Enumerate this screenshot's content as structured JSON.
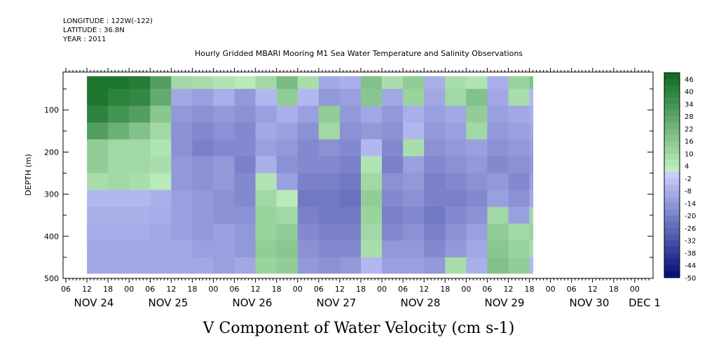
{
  "header": {
    "longitude": "LONGITUDE : 122W(-122)",
    "latitude": "LATITUDE : 36.8N",
    "year": "YEAR : 2011"
  },
  "chart_data": {
    "type": "heatmap",
    "title": "Hourly Gridded MBARI Mooring M1 Sea Water Temperature and Salinity Observations",
    "xlabel": "",
    "ylabel": "DEPTH (m)",
    "colorbar_label": "V Component of Water Velocity (cm s-1)",
    "x_hour_labels": [
      "06",
      "12",
      "18",
      "00",
      "06",
      "12",
      "18",
      "00",
      "06",
      "12",
      "18",
      "00",
      "06",
      "12",
      "18",
      "00",
      "06",
      "12",
      "18",
      "00",
      "06",
      "12",
      "18",
      "00",
      "06",
      "12",
      "18",
      "00"
    ],
    "x_date_labels": [
      "NOV 24",
      "NOV 25",
      "NOV 26",
      "NOV 27",
      "NOV 28",
      "NOV 29",
      "NOV 30",
      "DEC 1"
    ],
    "y_ticks": [
      100,
      200,
      300,
      400,
      500
    ],
    "ylim": [
      500,
      10
    ],
    "data_x_range_hours": [
      12,
      139
    ],
    "data_depth_range": [
      20,
      488
    ],
    "colorbar_ticks": [
      46,
      40,
      34,
      28,
      22,
      16,
      10,
      4,
      -2,
      -8,
      -14,
      -20,
      -26,
      -32,
      -38,
      -44,
      -50
    ],
    "colorbar_range": [
      -50,
      49
    ],
    "colors": {
      "positive": "#22c24a",
      "negative": "#3355e0",
      "neutral": "#b8c4ff"
    },
    "columns": [
      {
        "hour": 12,
        "values": [
          44,
          44,
          40,
          30,
          14,
          14,
          8,
          -6,
          -8,
          -9,
          -10,
          -10
        ]
      },
      {
        "hour": 18,
        "values": [
          44,
          40,
          34,
          24,
          10,
          10,
          10,
          -6,
          -8,
          -9,
          -10,
          -10
        ]
      },
      {
        "hour": 24,
        "values": [
          42,
          38,
          30,
          18,
          10,
          10,
          8,
          -6,
          -8,
          -9,
          -10,
          -10
        ]
      },
      {
        "hour": 30,
        "values": [
          30,
          26,
          16,
          10,
          6,
          8,
          4,
          -8,
          -9,
          -10,
          -10,
          -10
        ]
      },
      {
        "hour": 36,
        "values": [
          10,
          -10,
          -14,
          -16,
          -16,
          -14,
          -14,
          -12,
          -12,
          -12,
          -10,
          -10
        ]
      },
      {
        "hour": 42,
        "values": [
          8,
          -12,
          -16,
          -18,
          -20,
          -16,
          -16,
          -14,
          -14,
          -14,
          -12,
          -10
        ]
      },
      {
        "hour": 48,
        "values": [
          6,
          -8,
          -14,
          -16,
          -18,
          -14,
          -14,
          -16,
          -16,
          -12,
          -12,
          -12
        ]
      },
      {
        "hour": 54,
        "values": [
          4,
          -14,
          -16,
          -18,
          -18,
          -20,
          -18,
          -18,
          -16,
          -14,
          -14,
          -10
        ]
      },
      {
        "hour": 60,
        "values": [
          10,
          -6,
          -12,
          -10,
          -12,
          -8,
          6,
          10,
          12,
          12,
          14,
          12
        ]
      },
      {
        "hour": 66,
        "values": [
          20,
          14,
          -8,
          -12,
          -14,
          -16,
          -12,
          4,
          10,
          14,
          16,
          14
        ]
      },
      {
        "hour": 72,
        "values": [
          8,
          -6,
          -12,
          -16,
          -18,
          -18,
          -20,
          -22,
          -20,
          -18,
          -16,
          -14
        ]
      },
      {
        "hour": 78,
        "values": [
          -10,
          -14,
          14,
          10,
          -16,
          -18,
          -20,
          -22,
          -22,
          -20,
          -18,
          -16
        ]
      },
      {
        "hour": 84,
        "values": [
          -8,
          -12,
          -14,
          -16,
          -18,
          -20,
          -22,
          -24,
          -22,
          -20,
          -18,
          -14
        ]
      },
      {
        "hour": 90,
        "values": [
          18,
          16,
          -10,
          -14,
          -6,
          6,
          10,
          14,
          12,
          10,
          8,
          -6
        ]
      },
      {
        "hour": 96,
        "values": [
          8,
          -10,
          -14,
          -16,
          -18,
          -20,
          -16,
          -18,
          -20,
          -18,
          -14,
          -12
        ]
      },
      {
        "hour": 102,
        "values": [
          14,
          12,
          -8,
          -6,
          8,
          -12,
          -14,
          -16,
          -18,
          -16,
          -14,
          -12
        ]
      },
      {
        "hour": 108,
        "values": [
          -8,
          -10,
          -12,
          -14,
          -16,
          -18,
          -20,
          -20,
          -22,
          -20,
          -18,
          -14
        ]
      },
      {
        "hour": 114,
        "values": [
          8,
          10,
          -10,
          -12,
          -14,
          -16,
          -18,
          -20,
          -18,
          -16,
          -14,
          8
        ]
      },
      {
        "hour": 120,
        "values": [
          6,
          18,
          14,
          10,
          -12,
          -14,
          -16,
          -18,
          -16,
          -12,
          -10,
          -8
        ]
      },
      {
        "hour": 126,
        "values": [
          -8,
          -10,
          -12,
          -14,
          -16,
          -18,
          -14,
          -12,
          10,
          14,
          16,
          18
        ]
      },
      {
        "hour": 132,
        "values": [
          12,
          8,
          -10,
          -12,
          -14,
          -16,
          -18,
          -16,
          -12,
          10,
          12,
          14
        ]
      },
      {
        "hour": 138,
        "values": [
          18,
          -6,
          -8,
          -10,
          -12,
          -14,
          -12,
          -10,
          10,
          12,
          8,
          -6
        ]
      }
    ],
    "column_depths": [
      30,
      70,
      110,
      150,
      190,
      230,
      270,
      310,
      350,
      390,
      430,
      470
    ],
    "grid": false,
    "legend_position": "right colorbar"
  }
}
